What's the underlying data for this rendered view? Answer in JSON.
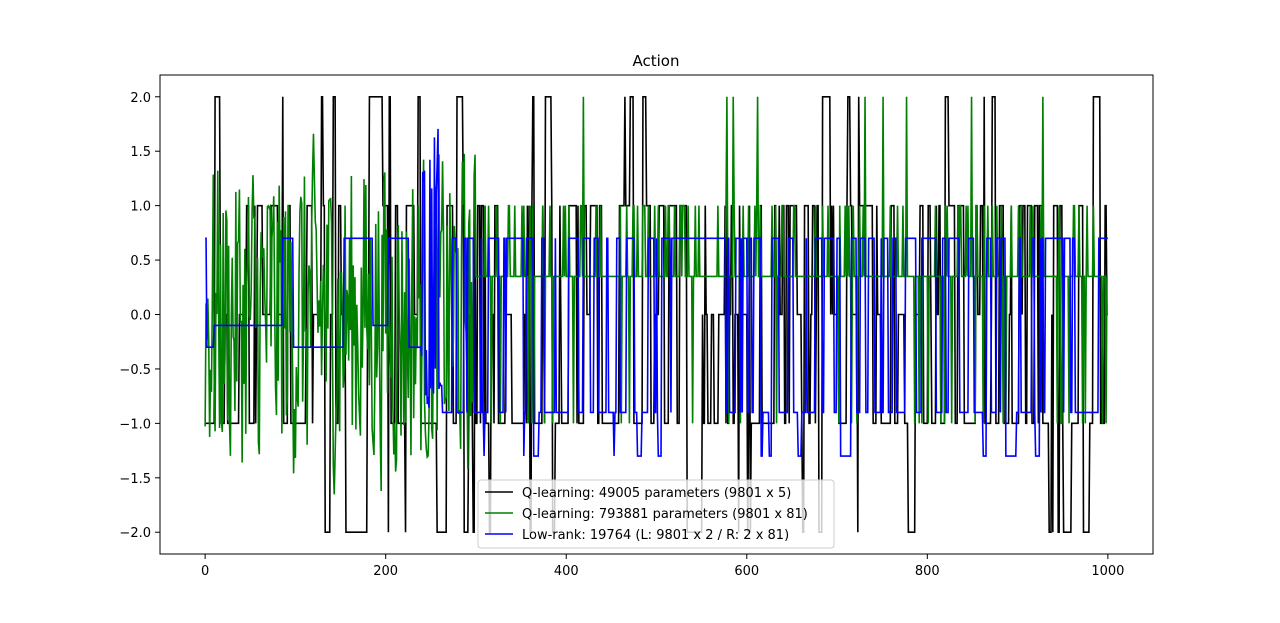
{
  "chart_data": {
    "type": "line",
    "title": "Action",
    "xlabel": "",
    "ylabel": "",
    "xlim": [
      -50,
      1050
    ],
    "ylim": [
      -2.2,
      2.2
    ],
    "xticks": [
      0,
      200,
      400,
      600,
      800,
      1000
    ],
    "xtick_labels": [
      "0",
      "200",
      "400",
      "600",
      "800",
      "1000"
    ],
    "yticks": [
      -2.0,
      -1.5,
      -1.0,
      -0.5,
      0.0,
      0.5,
      1.0,
      1.5,
      2.0
    ],
    "ytick_labels": [
      "−2.0",
      "−1.5",
      "−1.0",
      "−0.5",
      "0.0",
      "0.5",
      "1.0",
      "1.5",
      "2.0"
    ],
    "grid": false,
    "legend_position": "bottom-center",
    "n_steps": 1000,
    "series": [
      {
        "name": "Q-learning: 49005 parameters (9801 x 5)",
        "color": "#000000",
        "levels": [
          -2,
          -1,
          0,
          1,
          2
        ],
        "segments": [
          {
            "x_start": 0,
            "x_end": 4,
            "value": -1
          },
          {
            "x_start": 5,
            "x_end": 300,
            "value": "oscillating between -2 and 2"
          },
          {
            "x_start": 300,
            "x_end": 1000,
            "value": "switching mostly between -1 and 1, occasional 0, -2 and 2"
          }
        ]
      },
      {
        "name": "Q-learning: 793881 parameters (9801 x 81)",
        "color": "#008000",
        "segments": [
          {
            "x_start": 0,
            "x_end": 300,
            "value": "continuous noisy values between -2 and 2"
          },
          {
            "x_start": 300,
            "x_end": 1000,
            "value": "mostly 0.35, spikes to 1.0, occasional drops to -1.0"
          }
        ]
      },
      {
        "name": "Low-rank: 19764 (L: 9801 x 2 / R: 2 x 81)",
        "color": "#0000ff",
        "segments": [
          {
            "x_start": 0,
            "x_end": 230,
            "value": "mostly 0.7 with dips to -0.1 / -0.3"
          },
          {
            "x_start": 240,
            "x_end": 260,
            "value": "bursts up to 1.75"
          },
          {
            "x_start": 260,
            "x_end": 1000,
            "value": "switching between 0.7 and -0.9, occasional -1.3"
          }
        ]
      }
    ]
  }
}
